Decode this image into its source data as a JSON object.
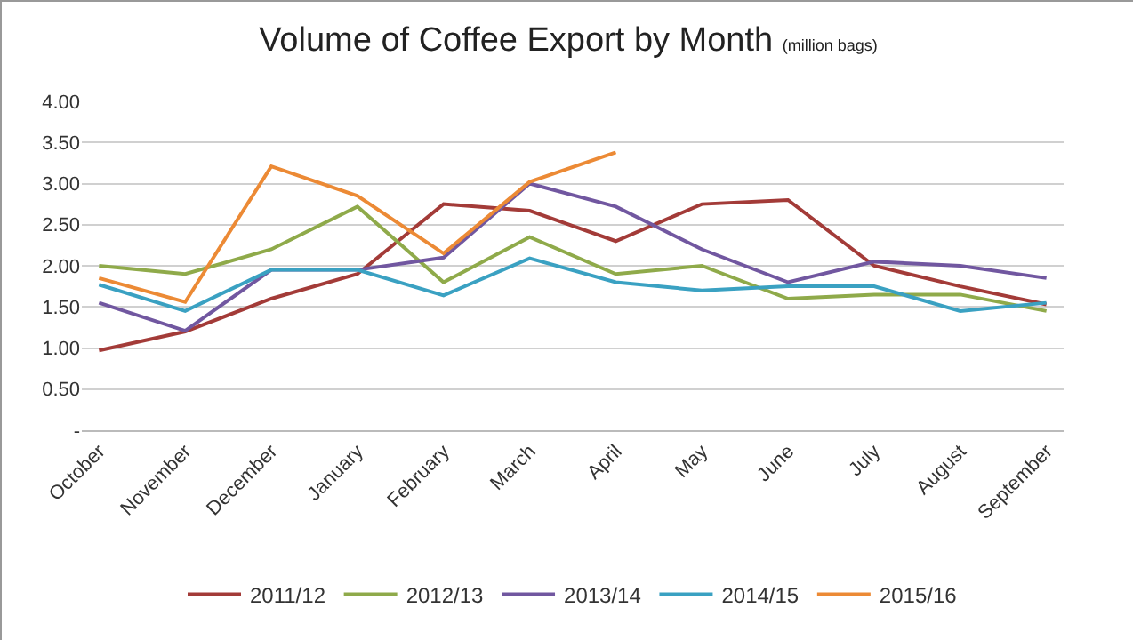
{
  "chart_data": {
    "type": "line",
    "title": "Volume of Coffee Export by Month",
    "subtitle": "(million bags)",
    "categories": [
      "October",
      "November",
      "December",
      "January",
      "February",
      "March",
      "April",
      "May",
      "June",
      "July",
      "August",
      "September"
    ],
    "series": [
      {
        "name": "2011/12",
        "color": "#a33b38",
        "values": [
          0.97,
          1.2,
          1.6,
          1.9,
          2.75,
          2.67,
          2.3,
          2.75,
          2.8,
          2.0,
          1.75,
          1.53
        ]
      },
      {
        "name": "2012/13",
        "color": "#8faa4a",
        "values": [
          2.0,
          1.9,
          2.2,
          2.72,
          1.8,
          2.35,
          1.9,
          2.0,
          1.6,
          1.65,
          1.65,
          1.45
        ]
      },
      {
        "name": "2013/14",
        "color": "#7157a0",
        "values": [
          1.55,
          1.21,
          1.95,
          1.95,
          2.1,
          3.0,
          2.72,
          2.2,
          1.8,
          2.05,
          2.0,
          1.85
        ]
      },
      {
        "name": "2014/15",
        "color": "#3aa1c2",
        "values": [
          1.77,
          1.45,
          1.95,
          1.95,
          1.64,
          2.09,
          1.8,
          1.7,
          1.75,
          1.75,
          1.45,
          1.55
        ]
      },
      {
        "name": "2015/16",
        "color": "#ec8a35",
        "values": [
          1.85,
          1.56,
          3.21,
          2.85,
          2.15,
          3.02,
          3.38,
          null,
          null,
          null,
          null,
          null
        ]
      }
    ],
    "ylim": [
      0,
      4
    ],
    "yticks": [
      {
        "value": 0,
        "label": "-"
      },
      {
        "value": 0.5,
        "label": "0.50"
      },
      {
        "value": 1,
        "label": "1.00"
      },
      {
        "value": 1.5,
        "label": "1.50"
      },
      {
        "value": 2,
        "label": "2.00"
      },
      {
        "value": 2.5,
        "label": "2.50"
      },
      {
        "value": 3,
        "label": "3.00"
      },
      {
        "value": 3.5,
        "label": "3.50"
      },
      {
        "value": 4,
        "label": "4.00"
      }
    ],
    "grid": "y",
    "legend": "bottom",
    "marker": "none",
    "line_style": "solid"
  }
}
